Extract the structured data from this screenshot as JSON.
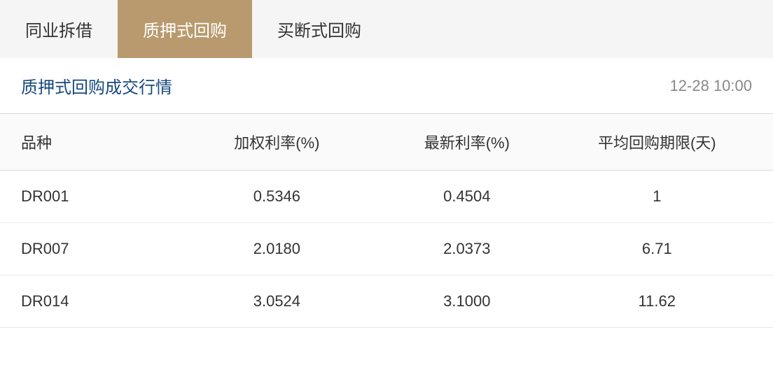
{
  "tabs": {
    "items": [
      {
        "label": "同业拆借",
        "active": false
      },
      {
        "label": "质押式回购",
        "active": true
      },
      {
        "label": "买断式回购",
        "active": false
      }
    ]
  },
  "section": {
    "title": "质押式回购成交行情",
    "timestamp": "12-28 10:00"
  },
  "table": {
    "columns": [
      "品种",
      "加权利率(%)",
      "最新利率(%)",
      "平均回购期限(天)"
    ],
    "rows": [
      [
        "DR001",
        "0.5346",
        "0.4504",
        "1"
      ],
      [
        "DR007",
        "2.0180",
        "2.0373",
        "6.71"
      ],
      [
        "DR014",
        "3.0524",
        "3.1000",
        "11.62"
      ]
    ]
  },
  "colors": {
    "tab_active_bg": "#b89a6e",
    "tab_inactive_bg": "#f5f5f5",
    "title_color": "#164a7d",
    "timestamp_color": "#888888",
    "border_color": "#d9d9d9",
    "text_color": "#333333",
    "background": "#ffffff"
  }
}
